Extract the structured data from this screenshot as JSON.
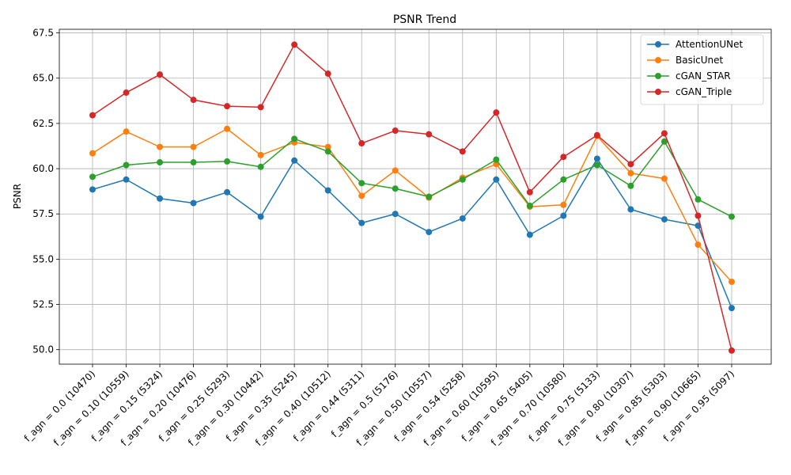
{
  "chart_data": {
    "type": "line",
    "title": "PSNR Trend",
    "xlabel": "",
    "ylabel": "PSNR",
    "ylim": [
      49.2,
      67.7
    ],
    "yticks": [
      50.0,
      52.5,
      55.0,
      57.5,
      60.0,
      62.5,
      65.0,
      67.5
    ],
    "grid": true,
    "legend_position": "top-right",
    "categories": [
      "f_agn = 0.0 (10470)",
      "f_agn = 0.10 (10559)",
      "f_agn = 0.15 (5324)",
      "f_agn = 0.20 (10476)",
      "f_agn = 0.25 (5293)",
      "f_agn = 0.30 (10442)",
      "f_agn = 0.35 (5245)",
      "f_agn = 0.40 (10512)",
      "f_agn = 0.44 (5311)",
      "f_agn = 0.5 (5176)",
      "f_agn = 0.50 (10557)",
      "f_agn = 0.54 (5258)",
      "f_agn = 0.60 (10595)",
      "f_agn = 0.65 (5405)",
      "f_agn = 0.70 (10580)",
      "f_agn = 0.75 (5133)",
      "f_agn = 0.80 (10307)",
      "f_agn = 0.85 (5303)",
      "f_agn = 0.90 (10665)",
      "f_agn = 0.95 (5097)"
    ],
    "series": [
      {
        "name": "AttentionUNet",
        "color": "#1f77b4",
        "values": [
          58.85,
          59.4,
          58.35,
          58.1,
          58.7,
          57.35,
          60.45,
          58.8,
          57.0,
          57.5,
          56.5,
          57.25,
          59.4,
          56.35,
          57.4,
          60.55,
          57.75,
          57.2,
          56.85,
          52.3
        ]
      },
      {
        "name": "BasicUnet",
        "color": "#ff7f0e",
        "values": [
          60.85,
          62.05,
          61.2,
          61.2,
          62.2,
          60.75,
          61.45,
          61.2,
          58.5,
          59.9,
          58.4,
          59.5,
          60.25,
          57.9,
          58.0,
          61.8,
          59.75,
          59.45,
          55.8,
          53.75
        ]
      },
      {
        "name": "cGAN_STAR",
        "color": "#2ca02c",
        "values": [
          59.55,
          60.2,
          60.35,
          60.35,
          60.4,
          60.1,
          61.65,
          60.95,
          59.2,
          58.9,
          58.45,
          59.4,
          60.5,
          57.95,
          59.4,
          60.2,
          59.05,
          61.5,
          58.3,
          57.35
        ]
      },
      {
        "name": "cGAN_Triple",
        "color": "#d62728",
        "values": [
          62.95,
          64.2,
          65.2,
          63.8,
          63.45,
          63.4,
          66.85,
          65.25,
          61.4,
          62.1,
          61.9,
          60.95,
          63.1,
          58.7,
          60.65,
          61.85,
          60.25,
          61.95,
          57.4,
          49.95
        ]
      }
    ]
  }
}
